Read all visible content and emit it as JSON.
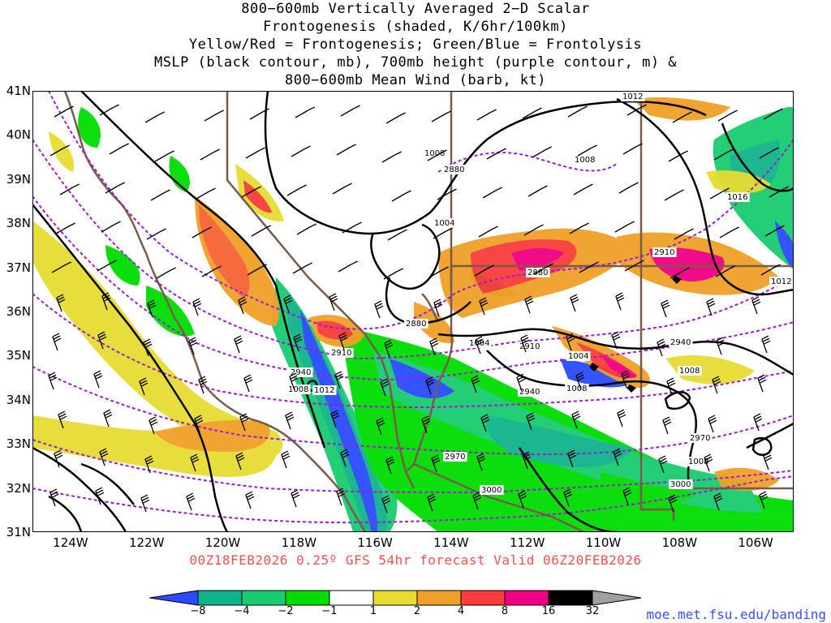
{
  "title_lines": [
    "800−600mb Vertically Averaged 2−D Scalar",
    "Frontogenesis (shaded, K/6hr/100km)",
    "Yellow/Red = Frontogenesis;  Green/Blue = Frontolysis",
    "MSLP (black contour, mb), 700mb height (purple contour, m) &",
    "800−600mb Mean Wind (barb, kt)"
  ],
  "caption": "00Z18FEB2026 0.25º GFS 54hr forecast Valid 06Z20FEB2026",
  "credit": "moe.met.fsu.edu/banding",
  "lat_labels": [
    "41N",
    "40N",
    "39N",
    "38N",
    "37N",
    "36N",
    "35N",
    "34N",
    "33N",
    "32N",
    "31N"
  ],
  "lon_labels": [
    "124W",
    "122W",
    "120W",
    "118W",
    "116W",
    "114W",
    "112W",
    "110W",
    "108W",
    "106W"
  ],
  "colorbar": {
    "ticks": [
      "−8",
      "−4",
      "−2",
      "−1",
      "1",
      "2",
      "4",
      "8",
      "16",
      "32"
    ],
    "colors": [
      "#2a4bff",
      "#10b48c",
      "#19cc70",
      "#00dc00",
      "#ffffff",
      "#e6dc32",
      "#f0a028",
      "#fa3c3c",
      "#f00082",
      "#000000",
      "#a0a0a0"
    ]
  },
  "mslp_labels": [
    "1012",
    "1008",
    "1004",
    "1004",
    "1004",
    "1008",
    "1008",
    "1012",
    "1016",
    "1008",
    "1008",
    "1012",
    "1008"
  ],
  "height_labels": [
    "2880",
    "2880",
    "2880",
    "2910",
    "2910",
    "2910",
    "2940",
    "2940",
    "2940",
    "2970",
    "2970",
    "3000",
    "3000"
  ],
  "map_extent": {
    "lon": [
      -125,
      -105
    ],
    "lat": [
      31,
      41
    ]
  }
}
